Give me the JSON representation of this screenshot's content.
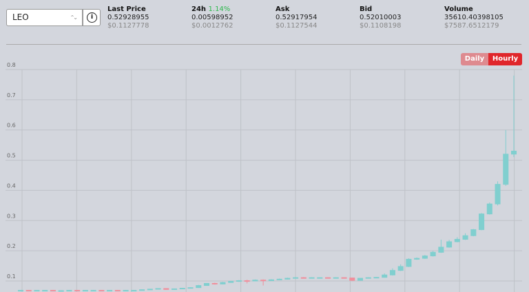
{
  "header": {
    "symbol": "LEO",
    "stats": [
      {
        "label": "Last Price",
        "value": "0.52928955",
        "usd": "$0.1127778"
      },
      {
        "label": "24h",
        "change": "1.14%",
        "value": "0.00598952",
        "usd": "$0.0012762"
      },
      {
        "label": "Ask",
        "value": "0.52917954",
        "usd": "$0.1127544"
      },
      {
        "label": "Bid",
        "value": "0.52010003",
        "usd": "$0.1108198"
      },
      {
        "label": "Volume",
        "value": "35610.40398105",
        "usd": "$7587.6512179"
      }
    ],
    "buttons": [
      "Daily",
      "Hourly"
    ]
  },
  "chart_data": {
    "type": "candlestick",
    "up_color": "#80cfcf",
    "down_color": "#f08f9c",
    "grid": true,
    "ylim": [
      0.0635,
      0.8
    ],
    "yticks": [
      0.1,
      0.2,
      0.3,
      0.4,
      0.5,
      0.6,
      0.7,
      0.8
    ],
    "open": [
      0.068,
      0.069,
      0.068,
      0.069,
      0.069,
      0.068,
      0.068,
      0.069,
      0.068,
      0.069,
      0.069,
      0.068,
      0.069,
      0.068,
      0.069,
      0.069,
      0.071,
      0.073,
      0.075,
      0.072,
      0.074,
      0.076,
      0.078,
      0.085,
      0.092,
      0.09,
      0.095,
      0.099,
      0.101,
      0.1,
      0.103,
      0.101,
      0.104,
      0.106,
      0.109,
      0.111,
      0.11,
      0.111,
      0.111,
      0.11,
      0.111,
      0.11,
      0.102,
      0.109,
      0.111,
      0.112,
      0.12,
      0.135,
      0.148,
      0.172,
      0.175,
      0.183,
      0.195,
      0.212,
      0.23,
      0.238,
      0.25,
      0.27,
      0.322,
      0.355,
      0.42,
      0.52
    ],
    "high": [
      0.07,
      0.07,
      0.07,
      0.07,
      0.07,
      0.069,
      0.07,
      0.07,
      0.07,
      0.07,
      0.069,
      0.07,
      0.07,
      0.07,
      0.07,
      0.072,
      0.074,
      0.076,
      0.076,
      0.075,
      0.077,
      0.079,
      0.087,
      0.093,
      0.094,
      0.097,
      0.1,
      0.103,
      0.104,
      0.105,
      0.105,
      0.106,
      0.108,
      0.111,
      0.113,
      0.113,
      0.112,
      0.112,
      0.112,
      0.112,
      0.112,
      0.111,
      0.11,
      0.112,
      0.113,
      0.125,
      0.142,
      0.155,
      0.175,
      0.178,
      0.186,
      0.2,
      0.237,
      0.236,
      0.245,
      0.258,
      0.272,
      0.325,
      0.36,
      0.43,
      0.6,
      0.78
    ],
    "low": [
      0.067,
      0.067,
      0.067,
      0.068,
      0.067,
      0.067,
      0.067,
      0.067,
      0.067,
      0.068,
      0.067,
      0.067,
      0.067,
      0.067,
      0.068,
      0.068,
      0.07,
      0.072,
      0.071,
      0.071,
      0.073,
      0.075,
      0.077,
      0.084,
      0.088,
      0.089,
      0.094,
      0.097,
      0.092,
      0.099,
      0.085,
      0.1,
      0.103,
      0.105,
      0.108,
      0.108,
      0.109,
      0.11,
      0.109,
      0.109,
      0.109,
      0.1,
      0.101,
      0.108,
      0.11,
      0.111,
      0.118,
      0.133,
      0.146,
      0.17,
      0.173,
      0.181,
      0.193,
      0.21,
      0.228,
      0.236,
      0.248,
      0.268,
      0.32,
      0.35,
      0.415,
      0.51
    ],
    "close": [
      0.069,
      0.068,
      0.069,
      0.069,
      0.068,
      0.068,
      0.069,
      0.068,
      0.069,
      0.069,
      0.068,
      0.069,
      0.068,
      0.069,
      0.069,
      0.071,
      0.073,
      0.075,
      0.072,
      0.074,
      0.076,
      0.078,
      0.085,
      0.092,
      0.09,
      0.095,
      0.099,
      0.101,
      0.1,
      0.103,
      0.101,
      0.104,
      0.106,
      0.109,
      0.111,
      0.11,
      0.111,
      0.111,
      0.11,
      0.111,
      0.11,
      0.102,
      0.109,
      0.111,
      0.112,
      0.12,
      0.135,
      0.148,
      0.172,
      0.175,
      0.183,
      0.195,
      0.212,
      0.23,
      0.238,
      0.25,
      0.27,
      0.322,
      0.355,
      0.42,
      0.52,
      0.53
    ]
  }
}
